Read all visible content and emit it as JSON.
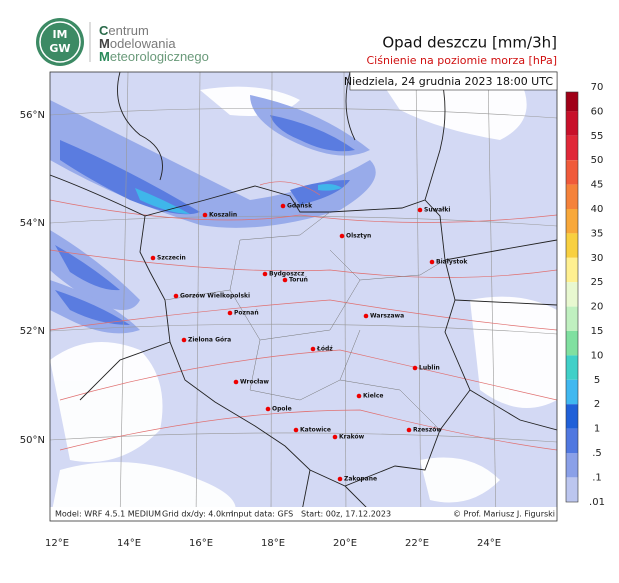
{
  "header": {
    "logo_top": "IM",
    "logo_bottom": "GW",
    "org": [
      "Centrum",
      "Modelowania",
      "Meteorologicznego"
    ],
    "title": "Opad deszczu [mm/3h]",
    "subtitle": "Ciśnienie na poziomie morza [hPa]"
  },
  "map": {
    "date": "Niedziela, 24 grudnia 2023 18:00 UTC",
    "lat_labels": [
      "56°N",
      "54°N",
      "52°N",
      "50°N"
    ],
    "lon_labels": [
      "12°E",
      "14°E",
      "16°E",
      "18°E",
      "20°E",
      "22°E",
      "24°E"
    ],
    "cities": [
      "Koszalin",
      "Gdańsk",
      "Suwałki",
      "Olsztyn",
      "Szczecin",
      "Bydgoszcz",
      "Toruń",
      "Białystok",
      "Gorzów Wielkopolski",
      "Poznań",
      "Warszawa",
      "Zielona Góra",
      "Łódź",
      "Lublin",
      "Wrocław",
      "Kielce",
      "Opole",
      "Katowice",
      "Kraków",
      "Rzeszów",
      "Zakopane"
    ],
    "footer": [
      "Model: WRF 4.5.1 MEDIUM",
      "Grid dx/dy: 4.0km",
      "Input data: GFS",
      "Start: 00z, 17.12.2023"
    ],
    "credit": "© Prof. Mariusz J. Figurski"
  },
  "legend": {
    "labels": [
      "70",
      "60",
      "55",
      "50",
      "45",
      "40",
      "35",
      "30",
      "25",
      "20",
      "15",
      "10",
      "5",
      "2",
      "1",
      ".5",
      ".1",
      ".01"
    ],
    "colors": [
      "#7a0010",
      "#a00018",
      "#c8102a",
      "#e02838",
      "#f05a3a",
      "#f5823a",
      "#f8a83a",
      "#f8d040",
      "#fff090",
      "#e8f8d0",
      "#c0f0c0",
      "#80e0a0",
      "#40d0c8",
      "#40b8f0",
      "#2060d8",
      "#5078e0",
      "#8aa0e8",
      "#bcc6ef",
      "#dfe3f7"
    ]
  }
}
